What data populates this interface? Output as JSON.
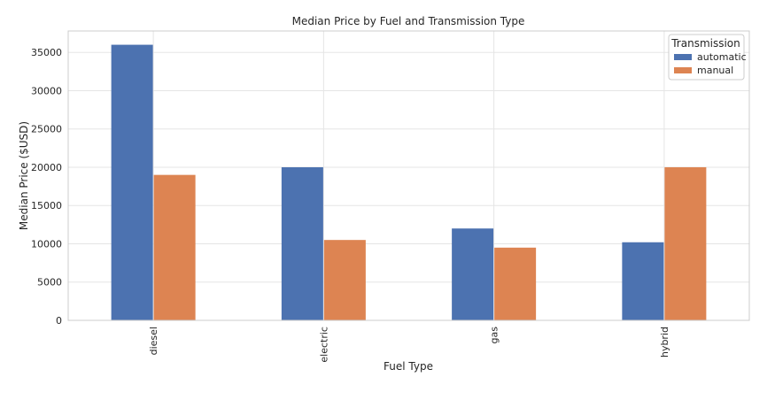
{
  "chart_data": {
    "type": "bar",
    "title": "Median Price by Fuel and Transmission Type",
    "xlabel": "Fuel Type",
    "ylabel": "Median Price ($USD)",
    "categories": [
      "diesel",
      "electric",
      "gas",
      "hybrid"
    ],
    "series": [
      {
        "name": "automatic",
        "color": "#4c72b0",
        "values": [
          36000,
          20000,
          12000,
          10200
        ]
      },
      {
        "name": "manual",
        "color": "#dd8452",
        "values": [
          19000,
          10500,
          9500,
          20000
        ]
      }
    ],
    "ylim": [
      0,
      37800
    ],
    "yticks": [
      0,
      5000,
      10000,
      15000,
      20000,
      25000,
      30000,
      35000
    ],
    "grid": true,
    "legend": {
      "title": "Transmission",
      "placement": "top-right"
    }
  }
}
